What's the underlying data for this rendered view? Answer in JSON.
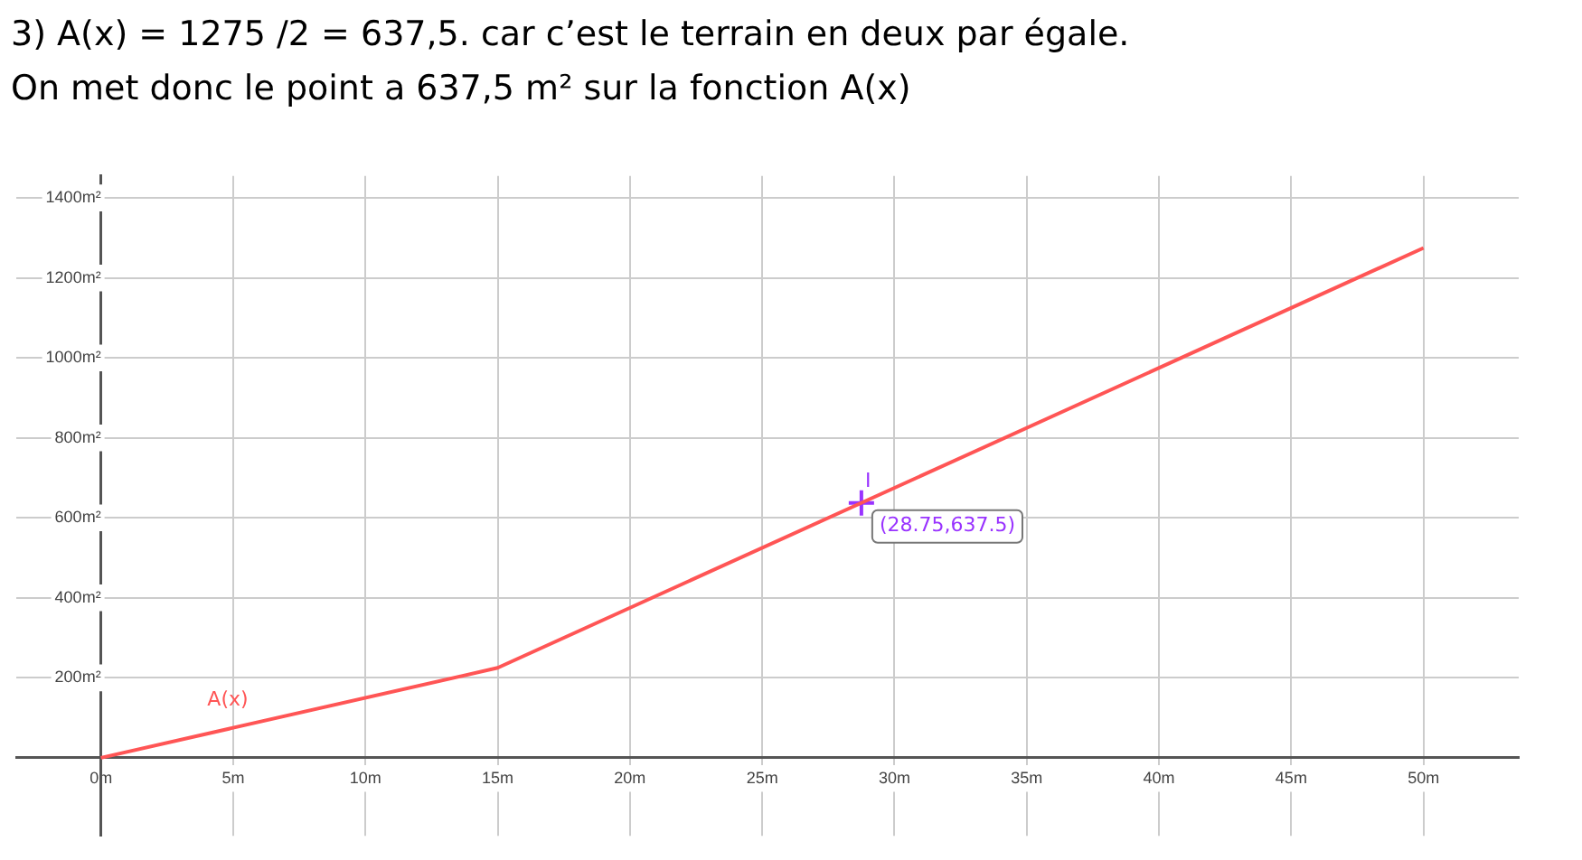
{
  "chart_data": {
    "type": "line",
    "title": "3) A(x) = 1275 /2 = 637,5. car c’est le terrain en deux par égale.",
    "subtitle": "On met donc le point a 637,5 m² sur la fonction A(x)",
    "series": [
      {
        "name": "A(x)",
        "type": "line",
        "color": "#ff5555",
        "x": [
          0,
          15,
          50
        ],
        "values": [
          0,
          225,
          1275
        ]
      },
      {
        "name": "I",
        "type": "scatter",
        "color": "#9933ff",
        "marker": "cross",
        "x": [
          28.75
        ],
        "values": [
          637.5
        ]
      }
    ],
    "annotations": [
      {
        "text": "(28.75,637.5)",
        "x": 28.75,
        "y": 637.5
      }
    ],
    "xlim": [
      -3.2,
      53.6
    ],
    "ylim": [
      -195,
      1455
    ],
    "xticks": [
      {
        "value": 0,
        "label": "0m"
      },
      {
        "value": 5,
        "label": "5m"
      },
      {
        "value": 10,
        "label": "10m"
      },
      {
        "value": 15,
        "label": "15m"
      },
      {
        "value": 20,
        "label": "20m"
      },
      {
        "value": 25,
        "label": "25m"
      },
      {
        "value": 30,
        "label": "30m"
      },
      {
        "value": 35,
        "label": "35m"
      },
      {
        "value": 40,
        "label": "40m"
      },
      {
        "value": 45,
        "label": "45m"
      },
      {
        "value": 50,
        "label": "50m"
      }
    ],
    "yticks": [
      {
        "value": 200,
        "label": "200m²"
      },
      {
        "value": 400,
        "label": "400m²"
      },
      {
        "value": 600,
        "label": "600m²"
      },
      {
        "value": 800,
        "label": "800m²"
      },
      {
        "value": 1000,
        "label": "1000m²"
      },
      {
        "value": 1200,
        "label": "1200m²"
      },
      {
        "value": 1400,
        "label": "1400m²"
      }
    ],
    "grid": true,
    "legend": false,
    "line_style": "solid"
  }
}
